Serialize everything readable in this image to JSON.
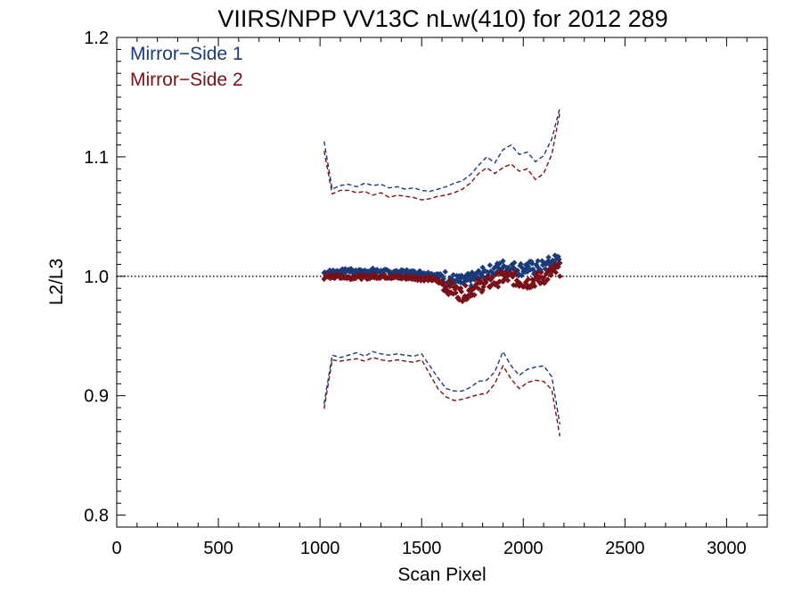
{
  "chart_data": {
    "type": "scatter",
    "title": "VIIRS/NPP VV13C nLw(410) for 2012 289",
    "xlabel": "Scan Pixel",
    "ylabel": "L2/L3",
    "xlim": [
      0,
      3200
    ],
    "ylim": [
      0.79,
      1.2
    ],
    "x_ticks": [
      0,
      500,
      1000,
      1500,
      2000,
      2500,
      3000
    ],
    "x_tick_labels": [
      "0",
      "500",
      "1000",
      "1500",
      "2000",
      "2500",
      "3000"
    ],
    "y_ticks": [
      0.8,
      0.9,
      1.0,
      1.1,
      1.2
    ],
    "y_tick_labels": [
      "0.8",
      "0.9",
      "1.0",
      "1.1",
      "1.2"
    ],
    "reference_line": 1.0,
    "legend_position": "top-left",
    "colors": {
      "ms1": "#1a3a7a",
      "ms2": "#7a1018"
    },
    "series": [
      {
        "name": "Mirror−Side 1",
        "color": "#1a3a7a",
        "x": [
          1020,
          1060,
          1100,
          1140,
          1180,
          1220,
          1260,
          1300,
          1340,
          1380,
          1420,
          1460,
          1500,
          1540,
          1580,
          1620,
          1660,
          1700,
          1740,
          1780,
          1820,
          1860,
          1900,
          1940,
          1980,
          2020,
          2060,
          2100,
          2140,
          2180
        ],
        "mean": [
          1.003,
          1.004,
          1.004,
          1.005,
          1.004,
          1.004,
          1.005,
          1.004,
          1.004,
          1.003,
          1.004,
          1.003,
          1.003,
          1.002,
          1.001,
          0.999,
          0.996,
          0.995,
          0.997,
          1.0,
          1.003,
          1.005,
          1.008,
          1.007,
          1.006,
          1.007,
          1.007,
          1.008,
          1.012,
          1.016
        ],
        "upper": [
          1.113,
          1.073,
          1.076,
          1.077,
          1.075,
          1.078,
          1.076,
          1.077,
          1.074,
          1.075,
          1.073,
          1.074,
          1.072,
          1.071,
          1.073,
          1.075,
          1.078,
          1.08,
          1.085,
          1.093,
          1.1,
          1.095,
          1.106,
          1.11,
          1.102,
          1.104,
          1.096,
          1.101,
          1.115,
          1.141
        ],
        "lower": [
          0.893,
          0.934,
          0.932,
          0.934,
          0.936,
          0.933,
          0.937,
          0.935,
          0.934,
          0.935,
          0.934,
          0.933,
          0.935,
          0.925,
          0.915,
          0.906,
          0.904,
          0.904,
          0.907,
          0.912,
          0.913,
          0.92,
          0.937,
          0.925,
          0.917,
          0.922,
          0.924,
          0.925,
          0.916,
          0.876
        ]
      },
      {
        "name": "Mirror−Side 2",
        "color": "#7a1018",
        "x": [
          1020,
          1060,
          1100,
          1140,
          1180,
          1220,
          1260,
          1300,
          1340,
          1380,
          1420,
          1460,
          1500,
          1540,
          1580,
          1620,
          1660,
          1700,
          1740,
          1780,
          1820,
          1860,
          1900,
          1940,
          1980,
          2020,
          2060,
          2100,
          2140,
          2180
        ],
        "mean": [
          0.999,
          1.0,
          1.0,
          0.999,
          1.0,
          0.999,
          1.0,
          1.0,
          1.0,
          0.999,
          0.999,
          0.999,
          0.998,
          0.998,
          0.996,
          0.992,
          0.988,
          0.985,
          0.988,
          0.992,
          0.994,
          0.996,
          0.999,
          0.999,
          0.996,
          0.995,
          0.997,
          0.999,
          1.003,
          1.006
        ],
        "upper": [
          1.105,
          1.069,
          1.072,
          1.072,
          1.07,
          1.071,
          1.068,
          1.07,
          1.066,
          1.068,
          1.067,
          1.066,
          1.064,
          1.065,
          1.067,
          1.068,
          1.07,
          1.073,
          1.078,
          1.086,
          1.091,
          1.086,
          1.091,
          1.094,
          1.088,
          1.09,
          1.081,
          1.086,
          1.102,
          1.137
        ],
        "lower": [
          0.889,
          0.93,
          0.929,
          0.93,
          0.931,
          0.929,
          0.932,
          0.93,
          0.929,
          0.93,
          0.929,
          0.928,
          0.93,
          0.918,
          0.906,
          0.899,
          0.896,
          0.897,
          0.899,
          0.901,
          0.902,
          0.91,
          0.925,
          0.914,
          0.906,
          0.911,
          0.913,
          0.912,
          0.905,
          0.866
        ]
      }
    ]
  }
}
